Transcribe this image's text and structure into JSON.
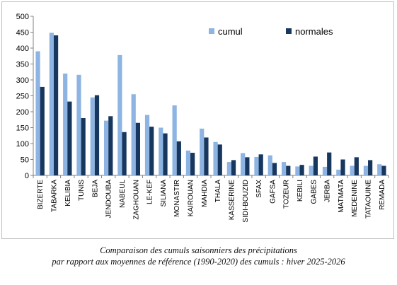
{
  "chart_data": {
    "type": "bar",
    "categories": [
      "BIZERTE",
      "TABARKA",
      "KELIBIA",
      "TUNIS",
      "BEJA",
      "JENDOUBA",
      "NABEUL",
      "ZAGHOUAN",
      "LE-KEF",
      "SILIANA",
      "MONASTIR",
      "KAIROUAN",
      "MAHDIA",
      "THALA",
      "KASSERINE",
      "SIDI-BOUZID",
      "SFAX",
      "GAFSA",
      "TOZEUR",
      "KEBILI",
      "GABES",
      "JERBA",
      "MATMATA",
      "MEDENINE",
      "TATAOUINE",
      "REMADA"
    ],
    "series": [
      {
        "name": "cumul",
        "color": "#8db4e2",
        "values": [
          390,
          448,
          320,
          316,
          245,
          172,
          378,
          255,
          190,
          150,
          220,
          78,
          147,
          105,
          42,
          70,
          58,
          63,
          42,
          28,
          30,
          27,
          18,
          30,
          30,
          35
        ]
      },
      {
        "name": "normales",
        "color": "#17375e",
        "values": [
          278,
          440,
          232,
          180,
          252,
          186,
          136,
          165,
          153,
          132,
          107,
          71,
          119,
          97,
          48,
          57,
          66,
          39,
          30,
          33,
          59,
          72,
          50,
          57,
          48,
          30
        ]
      }
    ],
    "ylim": [
      0,
      500
    ],
    "yticks": [
      0,
      50,
      100,
      150,
      200,
      250,
      300,
      350,
      400,
      450,
      500
    ],
    "legend_position": "top-right",
    "grid": false
  },
  "caption": {
    "line1": "Comparaison des cumuls saisonniers des précipitations",
    "line2": "par rapport aux moyennes de référence (1990-2020)  des cumuls : hiver 2025-2026"
  }
}
